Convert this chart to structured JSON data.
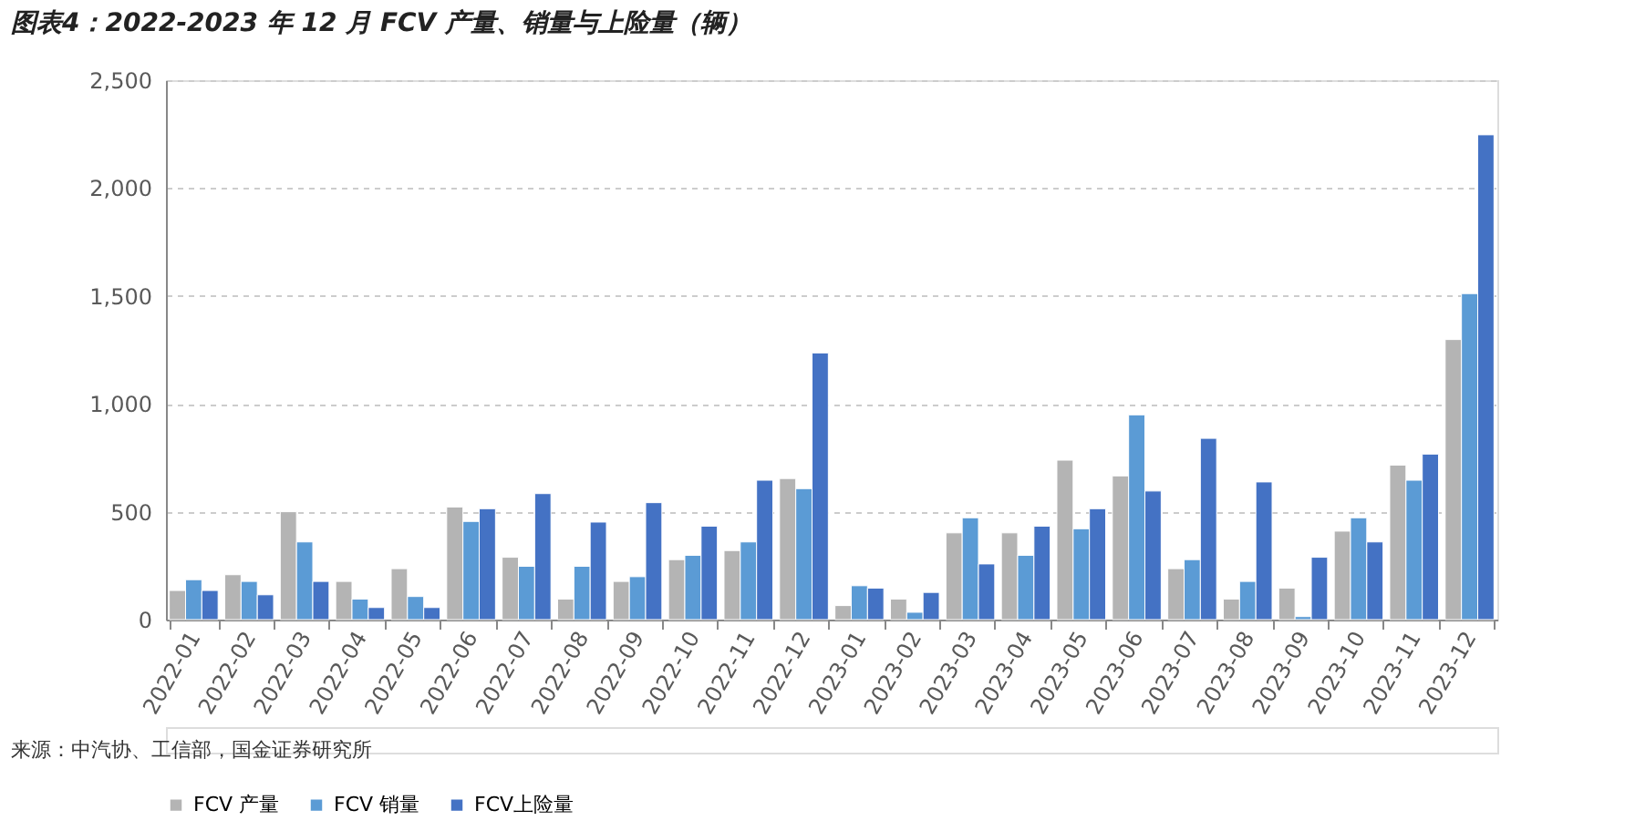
{
  "chart_data": {
    "type": "bar",
    "title": "图表4：2022-2023 年 12 月 FCV 产量、销量与上险量（辆）",
    "categories": [
      "2022-01",
      "2022-02",
      "2022-03",
      "2022-04",
      "2022-05",
      "2022-06",
      "2022-07",
      "2022-08",
      "2022-09",
      "2022-10",
      "2022-11",
      "2022-12",
      "2023-01",
      "2023-02",
      "2023-03",
      "2023-04",
      "2023-05",
      "2023-06",
      "2023-07",
      "2023-08",
      "2023-09",
      "2023-10",
      "2023-11",
      "2023-12"
    ],
    "series": [
      {
        "name": "FCV 产量",
        "color": "#b4b4b4",
        "values": [
          135,
          208,
          500,
          177,
          236,
          522,
          289,
          95,
          177,
          278,
          320,
          654,
          65,
          95,
          402,
          402,
          739,
          666,
          236,
          95,
          146,
          410,
          716,
          1298
        ]
      },
      {
        "name": "FCV 销量",
        "color": "#5b9bd5",
        "values": [
          185,
          177,
          360,
          95,
          107,
          455,
          247,
          247,
          199,
          298,
          360,
          607,
          157,
          34,
          472,
          298,
          421,
          949,
          278,
          177,
          14,
          472,
          646,
          1511
        ]
      },
      {
        "name": "FCV上险量",
        "color": "#4472c4",
        "values": [
          135,
          115,
          177,
          56,
          56,
          514,
          584,
          452,
          542,
          433,
          646,
          1236,
          146,
          126,
          258,
          433,
          514,
          596,
          840,
          638,
          289,
          360,
          767,
          2247
        ]
      }
    ],
    "ylim": [
      0,
      2500
    ],
    "yticks": [
      {
        "value": 0,
        "label": "0"
      },
      {
        "value": 500,
        "label": "500"
      },
      {
        "value": 1000,
        "label": "1,000"
      },
      {
        "value": 1500,
        "label": "1,500"
      },
      {
        "value": 2000,
        "label": "2,000"
      },
      {
        "value": 2500,
        "label": "2,500"
      }
    ],
    "grid": "y",
    "legend": "bottom",
    "annotations": [
      "来源：中汽协、工信部，国金证券研究所"
    ]
  }
}
